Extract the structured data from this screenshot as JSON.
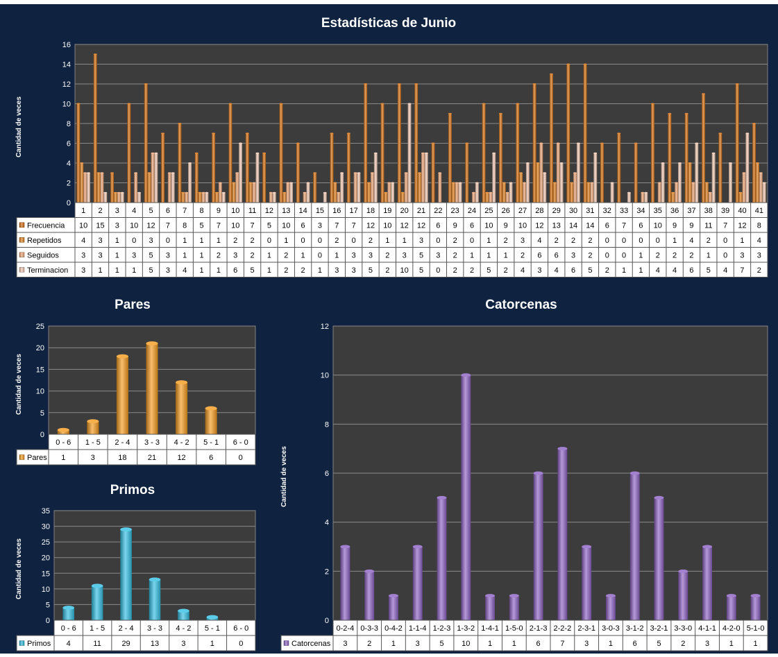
{
  "colors": {
    "background": "#0f2340",
    "plot_area": "#3c3c3c",
    "gridline": "#8a8a8a",
    "frecuencia": "#d9700f",
    "repetidos": "#e58422",
    "seguidos": "#f0a877",
    "terminacion": "#f4cbb4",
    "pares": "#f59b1e",
    "primos": "#33bfe3",
    "catorcenas": "#8d62c4"
  },
  "chart_data": [
    {
      "type": "bar",
      "title": "Estadísticas de Junio",
      "ylabel": "Cantidad de veces",
      "ylim": [
        0,
        16
      ],
      "yticks": [
        0,
        2,
        4,
        6,
        8,
        10,
        12,
        14,
        16
      ],
      "categories": [
        "1",
        "2",
        "3",
        "4",
        "5",
        "6",
        "7",
        "8",
        "9",
        "10",
        "11",
        "12",
        "13",
        "14",
        "15",
        "16",
        "17",
        "18",
        "19",
        "20",
        "21",
        "22",
        "23",
        "24",
        "25",
        "26",
        "27",
        "28",
        "29",
        "30",
        "31",
        "32",
        "33",
        "34",
        "35",
        "36",
        "37",
        "38",
        "39",
        "40",
        "41"
      ],
      "series": [
        {
          "name": "Frecuencia",
          "values": [
            10,
            15,
            3,
            10,
            12,
            7,
            8,
            5,
            7,
            10,
            7,
            5,
            10,
            6,
            3,
            7,
            7,
            12,
            10,
            12,
            12,
            6,
            9,
            6,
            10,
            9,
            10,
            12,
            13,
            14,
            14,
            6,
            7,
            6,
            10,
            9,
            9,
            11,
            7,
            12,
            8
          ]
        },
        {
          "name": "Repetidos",
          "values": [
            4,
            3,
            1,
            0,
            3,
            0,
            1,
            1,
            1,
            2,
            2,
            0,
            1,
            0,
            0,
            2,
            0,
            2,
            1,
            1,
            3,
            0,
            2,
            0,
            1,
            2,
            3,
            4,
            2,
            2,
            2,
            0,
            0,
            0,
            0,
            1,
            4,
            2,
            0,
            1,
            4
          ]
        },
        {
          "name": "Seguidos",
          "values": [
            3,
            3,
            1,
            3,
            5,
            3,
            1,
            1,
            2,
            3,
            2,
            1,
            2,
            1,
            0,
            1,
            3,
            3,
            2,
            3,
            5,
            3,
            2,
            1,
            1,
            1,
            2,
            6,
            6,
            3,
            2,
            0,
            0,
            1,
            2,
            2,
            2,
            1,
            0,
            3,
            3
          ]
        },
        {
          "name": "Terminacion",
          "values": [
            3,
            1,
            1,
            1,
            5,
            3,
            4,
            1,
            1,
            6,
            5,
            1,
            2,
            2,
            1,
            3,
            3,
            5,
            2,
            10,
            5,
            0,
            2,
            2,
            5,
            2,
            4,
            3,
            4,
            6,
            5,
            2,
            1,
            1,
            4,
            4,
            6,
            5,
            4,
            7,
            2
          ]
        }
      ]
    },
    {
      "type": "bar",
      "title": "Pares",
      "ylabel": "Cantidad de veces",
      "ylim": [
        0,
        25
      ],
      "yticks": [
        0,
        5,
        10,
        15,
        20,
        25
      ],
      "categories": [
        "0 - 6",
        "1 - 5",
        "2 - 4",
        "3 - 3",
        "4 - 2",
        "5 - 1",
        "6 - 0"
      ],
      "series": [
        {
          "name": "Pares",
          "values": [
            1,
            3,
            18,
            21,
            12,
            6,
            0
          ]
        }
      ]
    },
    {
      "type": "bar",
      "title": "Primos",
      "ylabel": "Cantidad de veces",
      "ylim": [
        0,
        35
      ],
      "yticks": [
        0,
        5,
        10,
        15,
        20,
        25,
        30,
        35
      ],
      "categories": [
        "0 - 6",
        "1 - 5",
        "2 - 4",
        "3 - 3",
        "4 - 2",
        "5 - 1",
        "6 - 0"
      ],
      "series": [
        {
          "name": "Primos",
          "values": [
            4,
            11,
            29,
            13,
            3,
            1,
            0
          ]
        }
      ]
    },
    {
      "type": "bar",
      "title": "Catorcenas",
      "ylabel": "Cantidad de veces",
      "ylim": [
        0,
        12
      ],
      "yticks": [
        0,
        2,
        4,
        6,
        8,
        10,
        12
      ],
      "categories": [
        "0-2-4",
        "0-3-3",
        "0-4-2",
        "1-1-4",
        "1-2-3",
        "1-3-2",
        "1-4-1",
        "1-5-0",
        "2-1-3",
        "2-2-2",
        "2-3-1",
        "3-0-3",
        "3-1-2",
        "3-2-1",
        "3-3-0",
        "4-1-1",
        "4-2-0",
        "5-1-0"
      ],
      "series": [
        {
          "name": "Catorcenas",
          "values": [
            3,
            2,
            1,
            3,
            5,
            10,
            1,
            1,
            6,
            7,
            3,
            1,
            6,
            5,
            2,
            3,
            1,
            1
          ]
        }
      ]
    }
  ]
}
